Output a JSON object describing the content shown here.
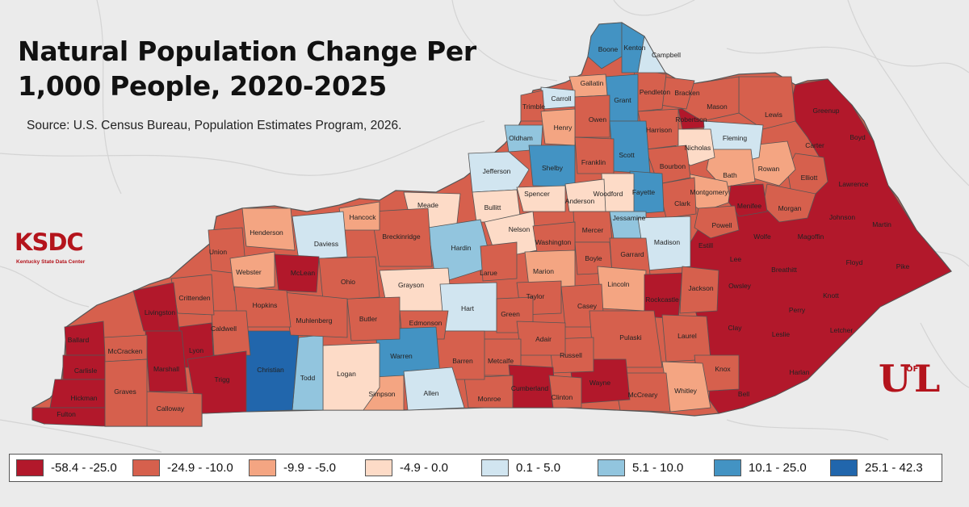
{
  "title_line1": "Natural Population Change Per",
  "title_line2": "1,000 People, 2020-2025",
  "source": "Source: U.S. Census Bureau, Population Estimates Program, 2026.",
  "logo_left": {
    "main": "KSDC",
    "sub": "Kentucky State Data Center"
  },
  "logo_right": {
    "u": "U",
    "of": "OF",
    "l": "L"
  },
  "legend": [
    {
      "label": "-58.4 - -25.0",
      "color": "#b2182b"
    },
    {
      "label": "-24.9 - -10.0",
      "color": "#d6604d"
    },
    {
      "label": "-9.9 - -5.0",
      "color": "#f4a582"
    },
    {
      "label": "-4.9 - 0.0",
      "color": "#fddbc7"
    },
    {
      "label": "0.1 - 5.0",
      "color": "#d1e5f0"
    },
    {
      "label": "5.1 - 10.0",
      "color": "#92c5de"
    },
    {
      "label": "10.1 - 25.0",
      "color": "#4393c3"
    },
    {
      "label": "25.1 - 42.3",
      "color": "#2166ac"
    }
  ],
  "counties": [
    {
      "name": "Boone",
      "cls": 6
    },
    {
      "name": "Kenton",
      "cls": 6
    },
    {
      "name": "Campbell",
      "cls": 4
    },
    {
      "name": "Gallatin",
      "cls": 2
    },
    {
      "name": "Carroll",
      "cls": 4
    },
    {
      "name": "Trimble",
      "cls": 1
    },
    {
      "name": "Grant",
      "cls": 6
    },
    {
      "name": "Pendleton",
      "cls": 1
    },
    {
      "name": "Bracken",
      "cls": 1
    },
    {
      "name": "Mason",
      "cls": 1
    },
    {
      "name": "Lewis",
      "cls": 1
    },
    {
      "name": "Greenup",
      "cls": 0
    },
    {
      "name": "Boyd",
      "cls": 0
    },
    {
      "name": "Carter",
      "cls": 0
    },
    {
      "name": "Robertson",
      "cls": 0
    },
    {
      "name": "Henry",
      "cls": 2
    },
    {
      "name": "Owen",
      "cls": 1
    },
    {
      "name": "Harrison",
      "cls": 1
    },
    {
      "name": "Fleming",
      "cls": 4
    },
    {
      "name": "Oldham",
      "cls": 5
    },
    {
      "name": "Scott",
      "cls": 6
    },
    {
      "name": "Nicholas",
      "cls": 3
    },
    {
      "name": "Shelby",
      "cls": 6
    },
    {
      "name": "Franklin",
      "cls": 1
    },
    {
      "name": "Bourbon",
      "cls": 1
    },
    {
      "name": "Bath",
      "cls": 2
    },
    {
      "name": "Rowan",
      "cls": 2
    },
    {
      "name": "Elliott",
      "cls": 1
    },
    {
      "name": "Jefferson",
      "cls": 4
    },
    {
      "name": "Lawrence",
      "cls": 0
    },
    {
      "name": "Woodford",
      "cls": 3
    },
    {
      "name": "Fayette",
      "cls": 6
    },
    {
      "name": "Montgomery",
      "cls": 2
    },
    {
      "name": "Spencer",
      "cls": 3
    },
    {
      "name": "Anderson",
      "cls": 3
    },
    {
      "name": "Clark",
      "cls": 1
    },
    {
      "name": "Menifee",
      "cls": 0
    },
    {
      "name": "Morgan",
      "cls": 1
    },
    {
      "name": "Johnson",
      "cls": 0
    },
    {
      "name": "Martin",
      "cls": 0
    },
    {
      "name": "Bullitt",
      "cls": 3
    },
    {
      "name": "Meade",
      "cls": 3
    },
    {
      "name": "Jessamine",
      "cls": 5
    },
    {
      "name": "Powell",
      "cls": 1
    },
    {
      "name": "Hancock",
      "cls": 2
    },
    {
      "name": "Henderson",
      "cls": 2
    },
    {
      "name": "Daviess",
      "cls": 4
    },
    {
      "name": "Breckinridge",
      "cls": 1
    },
    {
      "name": "Nelson",
      "cls": 3
    },
    {
      "name": "Mercer",
      "cls": 1
    },
    {
      "name": "Washington",
      "cls": 1
    },
    {
      "name": "Madison",
      "cls": 4
    },
    {
      "name": "Estill",
      "cls": 0
    },
    {
      "name": "Wolfe",
      "cls": 0
    },
    {
      "name": "Magoffin",
      "cls": 0
    },
    {
      "name": "Floyd",
      "cls": 0
    },
    {
      "name": "Pike",
      "cls": 0
    },
    {
      "name": "Union",
      "cls": 1
    },
    {
      "name": "Hardin",
      "cls": 5
    },
    {
      "name": "Boyle",
      "cls": 1
    },
    {
      "name": "Garrard",
      "cls": 1
    },
    {
      "name": "Lee",
      "cls": 0
    },
    {
      "name": "Webster",
      "cls": 2
    },
    {
      "name": "McLean",
      "cls": 0
    },
    {
      "name": "Ohio",
      "cls": 1
    },
    {
      "name": "Larue",
      "cls": 1
    },
    {
      "name": "Marion",
      "cls": 2
    },
    {
      "name": "Lincoln",
      "cls": 2
    },
    {
      "name": "Breathitt",
      "cls": 0
    },
    {
      "name": "Owsley",
      "cls": 0
    },
    {
      "name": "Knott",
      "cls": 0
    },
    {
      "name": "Crittenden",
      "cls": 1
    },
    {
      "name": "Hopkins",
      "cls": 1
    },
    {
      "name": "Grayson",
      "cls": 3
    },
    {
      "name": "Taylor",
      "cls": 1
    },
    {
      "name": "Casey",
      "cls": 1
    },
    {
      "name": "Rockcastle",
      "cls": 0
    },
    {
      "name": "Jackson",
      "cls": 1
    },
    {
      "name": "Perry",
      "cls": 0
    },
    {
      "name": "Livingston",
      "cls": 0
    },
    {
      "name": "Muhlenberg",
      "cls": 1
    },
    {
      "name": "Butler",
      "cls": 1
    },
    {
      "name": "Hart",
      "cls": 4
    },
    {
      "name": "Green",
      "cls": 1
    },
    {
      "name": "Edmonson",
      "cls": 1
    },
    {
      "name": "Caldwell",
      "cls": 1
    },
    {
      "name": "Clay",
      "cls": 0
    },
    {
      "name": "Leslie",
      "cls": 0
    },
    {
      "name": "Letcher",
      "cls": 0
    },
    {
      "name": "Ballard",
      "cls": 0
    },
    {
      "name": "McCracken",
      "cls": 1
    },
    {
      "name": "Lyon",
      "cls": 0
    },
    {
      "name": "Adair",
      "cls": 1
    },
    {
      "name": "Pulaski",
      "cls": 1
    },
    {
      "name": "Laurel",
      "cls": 1
    },
    {
      "name": "Carlisle",
      "cls": 0
    },
    {
      "name": "Marshall",
      "cls": 0
    },
    {
      "name": "Christian",
      "cls": 7
    },
    {
      "name": "Todd",
      "cls": 5
    },
    {
      "name": "Logan",
      "cls": 3
    },
    {
      "name": "Warren",
      "cls": 6
    },
    {
      "name": "Barren",
      "cls": 1
    },
    {
      "name": "Metcalfe",
      "cls": 1
    },
    {
      "name": "Russell",
      "cls": 1
    },
    {
      "name": "Knox",
      "cls": 1
    },
    {
      "name": "Harlan",
      "cls": 0
    },
    {
      "name": "Graves",
      "cls": 1
    },
    {
      "name": "Trigg",
      "cls": 0
    },
    {
      "name": "Hickman",
      "cls": 0
    },
    {
      "name": "Cumberland",
      "cls": 0
    },
    {
      "name": "Wayne",
      "cls": 0
    },
    {
      "name": "Whitley",
      "cls": 2
    },
    {
      "name": "Fulton",
      "cls": 0
    },
    {
      "name": "Calloway",
      "cls": 1
    },
    {
      "name": "Simpson",
      "cls": 2
    },
    {
      "name": "Allen",
      "cls": 4
    },
    {
      "name": "Monroe",
      "cls": 1
    },
    {
      "name": "Clinton",
      "cls": 1
    },
    {
      "name": "McCreary",
      "cls": 1
    },
    {
      "name": "Bell",
      "cls": 0
    }
  ]
}
